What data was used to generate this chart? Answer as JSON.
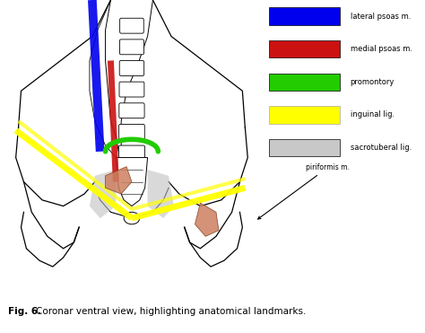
{
  "title": "Fig. 6.",
  "title_text": "Coronar ventral view, highlighting anatomical landmarks.",
  "legend_items": [
    {
      "color": "#0000EE",
      "label": "lateral psoas m."
    },
    {
      "color": "#CC1111",
      "label": "medial psoas m."
    },
    {
      "color": "#22CC00",
      "label": "promontory"
    },
    {
      "color": "#FFFF00",
      "label": "inguinal lig."
    },
    {
      "color": "#C8C8C8",
      "label": "sacrotuberal lig."
    }
  ],
  "annotation_label": "piriformis m.",
  "bg_color": "#FFFFFF",
  "fig_width": 4.74,
  "fig_height": 3.71,
  "dpi": 100
}
